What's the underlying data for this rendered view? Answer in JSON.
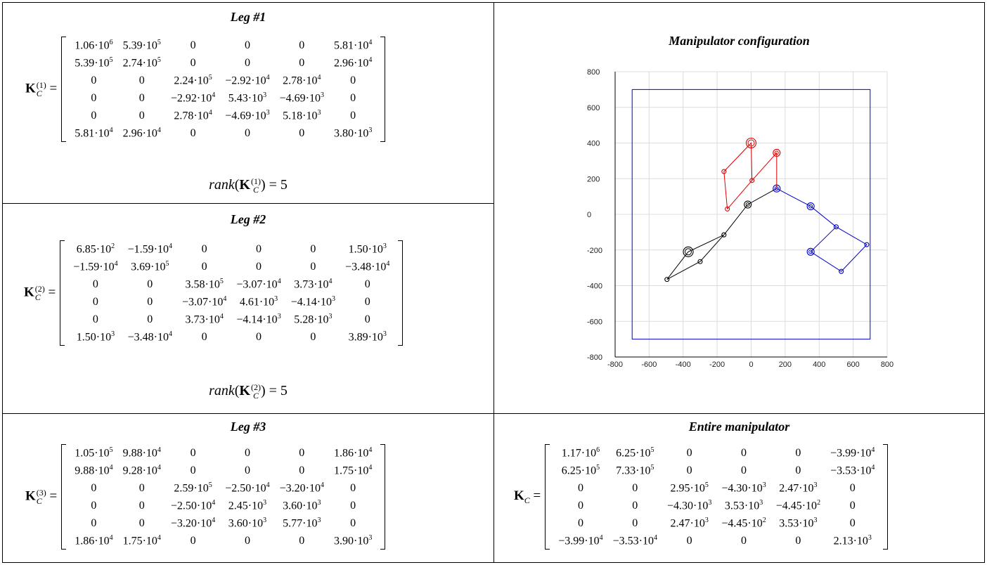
{
  "cells": {
    "leg1": {
      "title": "Leg #1",
      "lhs_bold": "K",
      "lhs_sub": "C",
      "lhs_sup": "(1)",
      "matrix": [
        [
          "1.06·10|6",
          "5.39·10|5",
          "0",
          "0",
          "0",
          "5.81·10|4"
        ],
        [
          "5.39·10|5",
          "2.74·10|5",
          "0",
          "0",
          "0",
          "2.96·10|4"
        ],
        [
          "0",
          "0",
          "2.24·10|5",
          "−2.92·10|4",
          "2.78·10|4",
          "0"
        ],
        [
          "0",
          "0",
          "−2.92·10|4",
          "5.43·10|3",
          "−4.69·10|3",
          "0"
        ],
        [
          "0",
          "0",
          "2.78·10|4",
          "−4.69·10|3",
          "5.18·10|3",
          "0"
        ],
        [
          "5.81·10|4",
          "2.96·10|4",
          "0",
          "0",
          "0",
          "3.80·10|3"
        ]
      ],
      "rank_text": "rank",
      "rank_value": "5"
    },
    "leg2": {
      "title": "Leg #2",
      "lhs_bold": "K",
      "lhs_sub": "C",
      "lhs_sup": "(2)",
      "matrix": [
        [
          "6.85·10|2",
          "−1.59·10|4",
          "0",
          "0",
          "0",
          "1.50·10|3"
        ],
        [
          "−1.59·10|4",
          "3.69·10|5",
          "0",
          "0",
          "0",
          "−3.48·10|4"
        ],
        [
          "0",
          "0",
          "3.58·10|5",
          "−3.07·10|4",
          "3.73·10|4",
          "0"
        ],
        [
          "0",
          "0",
          "−3.07·10|4",
          "4.61·10|3",
          "−4.14·10|3",
          "0"
        ],
        [
          "0",
          "0",
          "3.73·10|4",
          "−4.14·10|3",
          "5.28·10|3",
          "0"
        ],
        [
          "1.50·10|3",
          "−3.48·10|4",
          "0",
          "0",
          "0",
          "3.89·10|3"
        ]
      ],
      "rank_text": "rank",
      "rank_value": "5"
    },
    "leg3": {
      "title": "Leg #3",
      "lhs_bold": "K",
      "lhs_sub": "C",
      "lhs_sup": "(3)",
      "matrix": [
        [
          "1.05·10|5",
          "9.88·10|4",
          "0",
          "0",
          "0",
          "1.86·10|4"
        ],
        [
          "9.88·10|4",
          "9.28·10|4",
          "0",
          "0",
          "0",
          "1.75·10|4"
        ],
        [
          "0",
          "0",
          "2.59·10|5",
          "−2.50·10|4",
          "−3.20·10|4",
          "0"
        ],
        [
          "0",
          "0",
          "−2.50·10|4",
          "2.45·10|3",
          "3.60·10|3",
          "0"
        ],
        [
          "0",
          "0",
          "−3.20·10|4",
          "3.60·10|3",
          "5.77·10|3",
          "0"
        ],
        [
          "1.86·10|4",
          "1.75·10|4",
          "0",
          "0",
          "0",
          "3.90·10|3"
        ]
      ]
    },
    "entire": {
      "title": "Entire manipulator",
      "lhs_bold": "K",
      "lhs_sub": "C",
      "matrix": [
        [
          "1.17·10|6",
          "6.25·10|5",
          "0",
          "0",
          "0",
          "−3.99·10|4"
        ],
        [
          "6.25·10|5",
          "7.33·10|5",
          "0",
          "0",
          "0",
          "−3.53·10|4"
        ],
        [
          "0",
          "0",
          "2.95·10|5",
          "−4.30·10|3",
          "2.47·10|3",
          "0"
        ],
        [
          "0",
          "0",
          "−4.30·10|3",
          "3.53·10|3",
          "−4.45·10|2",
          "0"
        ],
        [
          "0",
          "0",
          "2.47·10|3",
          "−4.45·10|2",
          "3.53·10|3",
          "0"
        ],
        [
          "−3.99·10|4",
          "−3.53·10|4",
          "0",
          "0",
          "0",
          "2.13·10|3"
        ]
      ]
    }
  },
  "chart_data": {
    "type": "line",
    "title": "Manipulator configuration",
    "xlabel": "",
    "ylabel": "",
    "xlim": [
      -800,
      800
    ],
    "ylim": [
      -800,
      800
    ],
    "xticks": [
      -800,
      -600,
      -400,
      -200,
      0,
      200,
      400,
      600,
      800
    ],
    "yticks": [
      -800,
      -600,
      -400,
      -200,
      0,
      200,
      400,
      600,
      800
    ],
    "grid": true,
    "colors": {
      "workspace": "#0000cc",
      "red": "#e00000",
      "blue": "#0000cc",
      "black": "#000000"
    },
    "series": [
      {
        "color": "workspace",
        "points": [
          [
            -700,
            700
          ],
          [
            700,
            700
          ],
          [
            700,
            -700
          ],
          [
            -700,
            -700
          ],
          [
            -700,
            700
          ]
        ]
      },
      {
        "color": "red",
        "points": [
          [
            -140,
            30
          ],
          [
            -160,
            240
          ],
          [
            0,
            400
          ],
          [
            5,
            190
          ],
          [
            -140,
            30
          ]
        ]
      },
      {
        "color": "red",
        "points": [
          [
            5,
            190
          ],
          [
            150,
            345
          ],
          [
            150,
            145
          ]
        ]
      },
      {
        "color": "blue",
        "points": [
          [
            150,
            145
          ],
          [
            350,
            45
          ],
          [
            500,
            -70
          ],
          [
            680,
            -170
          ],
          [
            530,
            -320
          ],
          [
            350,
            -210
          ],
          [
            500,
            -70
          ]
        ]
      },
      {
        "color": "black",
        "points": [
          [
            150,
            145
          ],
          [
            -20,
            55
          ],
          [
            -160,
            -115
          ],
          [
            -370,
            -210
          ],
          [
            -495,
            -365
          ],
          [
            -300,
            -265
          ],
          [
            -160,
            -115
          ]
        ]
      }
    ],
    "joints": [
      {
        "color": "red",
        "x": 0,
        "y": 400,
        "size": "large"
      },
      {
        "color": "red",
        "x": 150,
        "y": 345,
        "size": "medium"
      },
      {
        "color": "red",
        "x": 5,
        "y": 190,
        "size": "small"
      },
      {
        "color": "red",
        "x": -160,
        "y": 240,
        "size": "small"
      },
      {
        "color": "red",
        "x": -140,
        "y": 30,
        "size": "small"
      },
      {
        "color": "blue",
        "x": 150,
        "y": 145,
        "size": "medium"
      },
      {
        "color": "blue",
        "x": 350,
        "y": 45,
        "size": "medium"
      },
      {
        "color": "blue",
        "x": 500,
        "y": -70,
        "size": "small"
      },
      {
        "color": "blue",
        "x": 680,
        "y": -170,
        "size": "small"
      },
      {
        "color": "blue",
        "x": 530,
        "y": -320,
        "size": "small"
      },
      {
        "color": "blue",
        "x": 350,
        "y": -210,
        "size": "medium"
      },
      {
        "color": "black",
        "x": -20,
        "y": 55,
        "size": "medium"
      },
      {
        "color": "black",
        "x": -160,
        "y": -115,
        "size": "small"
      },
      {
        "color": "black",
        "x": -370,
        "y": -210,
        "size": "large"
      },
      {
        "color": "black",
        "x": -300,
        "y": -265,
        "size": "small"
      },
      {
        "color": "black",
        "x": -495,
        "y": -365,
        "size": "small"
      }
    ]
  }
}
